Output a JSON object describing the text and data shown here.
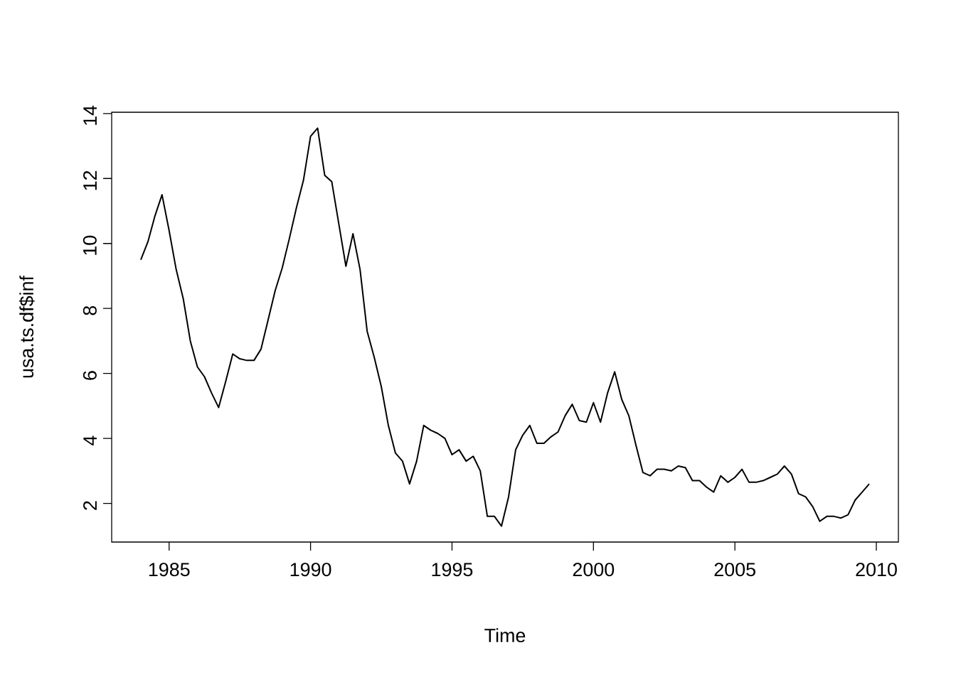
{
  "chart_data": {
    "type": "line",
    "xlabel": "Time",
    "ylabel": "usa.ts.df$inf",
    "x": [
      1984.0,
      1984.25,
      1984.5,
      1984.75,
      1985.0,
      1985.25,
      1985.5,
      1985.75,
      1986.0,
      1986.25,
      1986.5,
      1986.75,
      1987.0,
      1987.25,
      1987.5,
      1987.75,
      1988.0,
      1988.25,
      1988.5,
      1988.75,
      1989.0,
      1989.25,
      1989.5,
      1989.75,
      1990.0,
      1990.25,
      1990.5,
      1990.75,
      1991.0,
      1991.25,
      1991.5,
      1991.75,
      1992.0,
      1992.25,
      1992.5,
      1992.75,
      1993.0,
      1993.25,
      1993.5,
      1993.75,
      1994.0,
      1994.25,
      1994.5,
      1994.75,
      1995.0,
      1995.25,
      1995.5,
      1995.75,
      1996.0,
      1996.25,
      1996.5,
      1996.75,
      1997.0,
      1997.25,
      1997.5,
      1997.75,
      1998.0,
      1998.25,
      1998.5,
      1998.75,
      1999.0,
      1999.25,
      1999.5,
      1999.75,
      2000.0,
      2000.25,
      2000.5,
      2000.75,
      2001.0,
      2001.25,
      2001.5,
      2001.75,
      2002.0,
      2002.25,
      2002.5,
      2002.75,
      2003.0,
      2003.25,
      2003.5,
      2003.75,
      2004.0,
      2004.25,
      2004.5,
      2004.75,
      2005.0,
      2005.25,
      2005.5,
      2005.75,
      2006.0,
      2006.25,
      2006.5,
      2006.75,
      2007.0,
      2007.25,
      2007.5,
      2007.75,
      2008.0,
      2008.25,
      2008.5,
      2008.75,
      2009.0,
      2009.25,
      2009.5,
      2009.75
    ],
    "values": [
      9.5,
      10.05,
      10.85,
      11.5,
      10.4,
      9.2,
      8.3,
      7.0,
      6.2,
      5.9,
      5.4,
      4.95,
      5.75,
      6.6,
      6.45,
      6.4,
      6.4,
      6.75,
      7.65,
      8.55,
      9.25,
      10.15,
      11.1,
      11.95,
      13.3,
      13.55,
      12.1,
      11.9,
      10.6,
      9.3,
      10.3,
      9.2,
      7.3,
      6.5,
      5.6,
      4.4,
      3.55,
      3.3,
      2.6,
      3.3,
      4.4,
      4.25,
      4.15,
      4.0,
      3.5,
      3.65,
      3.3,
      3.45,
      3.0,
      1.6,
      1.6,
      1.3,
      2.2,
      3.65,
      4.1,
      4.4,
      3.85,
      3.85,
      4.05,
      4.2,
      4.7,
      5.05,
      4.55,
      4.5,
      5.1,
      4.5,
      5.4,
      6.05,
      5.2,
      4.7,
      3.8,
      2.95,
      2.85,
      3.05,
      3.05,
      3.0,
      3.15,
      3.1,
      2.7,
      2.7,
      2.5,
      2.35,
      2.85,
      2.65,
      2.8,
      3.05,
      2.65,
      2.65,
      2.7,
      2.8,
      2.9,
      3.15,
      2.9,
      2.3,
      2.2,
      1.9,
      1.45,
      1.6,
      1.6,
      1.55,
      1.65,
      2.1,
      2.35,
      2.6
    ],
    "color": "#000000",
    "line_style": "solid",
    "xlim": [
      1982.97,
      2010.78
    ],
    "ylim": [
      0.81,
      14.04
    ],
    "xticks": [
      1985,
      1990,
      1995,
      2000,
      2005,
      2010
    ],
    "yticks": [
      2,
      4,
      6,
      8,
      10,
      12,
      14
    ],
    "grid": false
  }
}
